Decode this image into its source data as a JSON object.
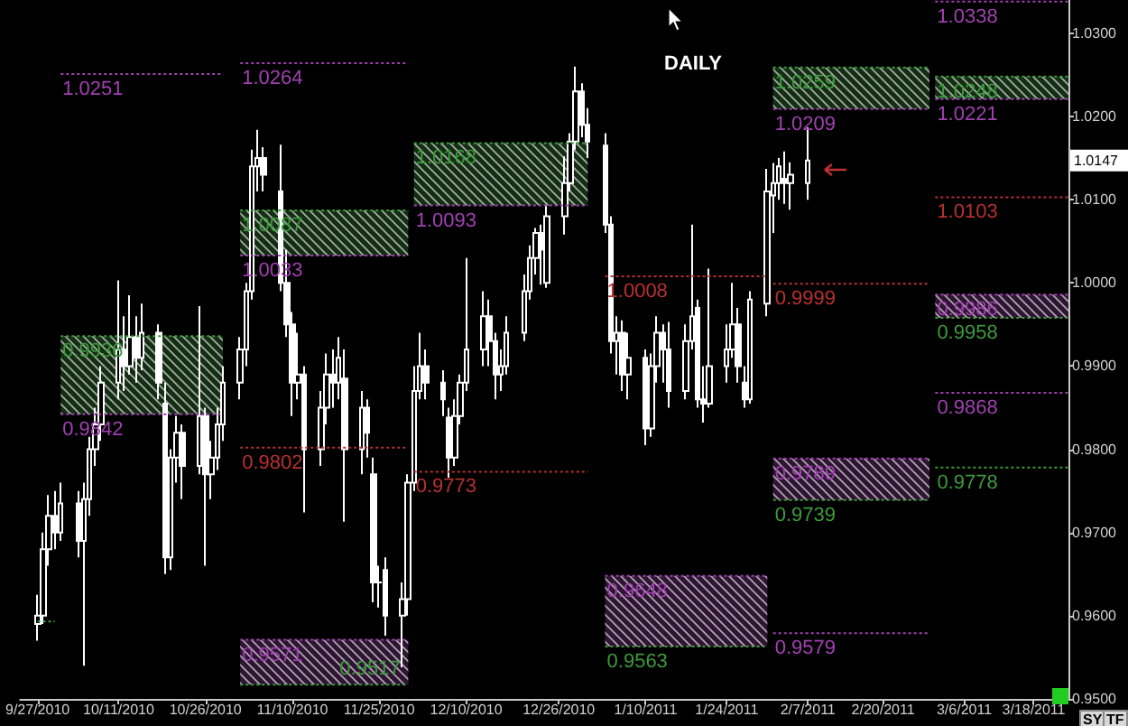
{
  "chart_data": {
    "type": "candlestick",
    "title": "DAILY",
    "color": "#ffffff",
    "marker": "none",
    "xlim": [
      "2010-09-24",
      "2011-03-24"
    ],
    "xticks": [
      {
        "value": "2010-09-27",
        "label": "9/27/2010"
      },
      {
        "value": "2010-10-11",
        "label": "10/11/2010"
      },
      {
        "value": "2010-10-26",
        "label": "10/26/2010"
      },
      {
        "value": "2010-11-10",
        "label": "11/10/2010"
      },
      {
        "value": "2010-11-25",
        "label": "11/25/2010"
      },
      {
        "value": "2010-12-10",
        "label": "12/10/2010"
      },
      {
        "value": "2010-12-26",
        "label": "12/26/2010"
      },
      {
        "value": "2011-01-10",
        "label": "1/10/2011"
      },
      {
        "value": "2011-01-24",
        "label": "1/24/2011"
      },
      {
        "value": "2011-02-07",
        "label": "2/7/2011"
      },
      {
        "value": "2011-02-20",
        "label": "2/20/2011"
      },
      {
        "value": "2011-03-06",
        "label": "3/6/2011"
      },
      {
        "value": "2011-03-18",
        "label": "3/18/2011"
      }
    ],
    "ylim": [
      0.95,
      1.034
    ],
    "yticks": [
      {
        "value": 0.95,
        "label": "0.9500"
      },
      {
        "value": 0.96,
        "label": "0.9600"
      },
      {
        "value": 0.97,
        "label": "0.9700"
      },
      {
        "value": 0.98,
        "label": "0.9800"
      },
      {
        "value": 0.99,
        "label": "0.9900"
      },
      {
        "value": 1.0,
        "label": "1.0000"
      },
      {
        "value": 1.01,
        "label": "1.0100"
      },
      {
        "value": 1.02,
        "label": "1.0200"
      },
      {
        "value": 1.03,
        "label": "1.0300"
      }
    ],
    "x": [
      "2010-09-27",
      "2010-09-28",
      "2010-09-29",
      "2010-09-30",
      "2010-10-01",
      "2010-10-04",
      "2010-10-05",
      "2010-10-06",
      "2010-10-07",
      "2010-10-08",
      "2010-10-11",
      "2010-10-12",
      "2010-10-13",
      "2010-10-14",
      "2010-10-15",
      "2010-10-18",
      "2010-10-19",
      "2010-10-20",
      "2010-10-21",
      "2010-10-22",
      "2010-10-25",
      "2010-10-26",
      "2010-10-27",
      "2010-10-28",
      "2010-10-29",
      "2010-11-01",
      "2010-11-02",
      "2010-11-03",
      "2010-11-04",
      "2010-11-05",
      "2010-11-08",
      "2010-11-09",
      "2010-11-10",
      "2010-11-11",
      "2010-11-12",
      "2010-11-15",
      "2010-11-16",
      "2010-11-17",
      "2010-11-18",
      "2010-11-19",
      "2010-11-22",
      "2010-11-23",
      "2010-11-24",
      "2010-11-25",
      "2010-11-26",
      "2010-11-29",
      "2010-11-30",
      "2010-12-01",
      "2010-12-02",
      "2010-12-03",
      "2010-12-06",
      "2010-12-07",
      "2010-12-08",
      "2010-12-09",
      "2010-12-10",
      "2010-12-13",
      "2010-12-14",
      "2010-12-15",
      "2010-12-16",
      "2010-12-17",
      "2010-12-20",
      "2010-12-21",
      "2010-12-22",
      "2010-12-23",
      "2010-12-24",
      "2010-12-27",
      "2010-12-28",
      "2010-12-29",
      "2010-12-30",
      "2010-12-31",
      "2011-01-03",
      "2011-01-04",
      "2011-01-05",
      "2011-01-06",
      "2011-01-07",
      "2011-01-10",
      "2011-01-11",
      "2011-01-12",
      "2011-01-13",
      "2011-01-14",
      "2011-01-17",
      "2011-01-18",
      "2011-01-19",
      "2011-01-20",
      "2011-01-21",
      "2011-01-24",
      "2011-01-25",
      "2011-01-26",
      "2011-01-27",
      "2011-01-28",
      "2011-01-31",
      "2011-02-01",
      "2011-02-02",
      "2011-02-03",
      "2011-02-04",
      "2011-02-07"
    ],
    "ohlc": [
      [
        0.959,
        0.9625,
        0.957,
        0.96
      ],
      [
        0.96,
        0.97,
        0.959,
        0.968
      ],
      [
        0.968,
        0.9745,
        0.966,
        0.972
      ],
      [
        0.972,
        0.975,
        0.968,
        0.97
      ],
      [
        0.97,
        0.976,
        0.969,
        0.9735
      ],
      [
        0.9735,
        0.975,
        0.967,
        0.969
      ],
      [
        0.969,
        0.976,
        0.954,
        0.974
      ],
      [
        0.974,
        0.9815,
        0.972,
        0.98
      ],
      [
        0.98,
        0.985,
        0.978,
        0.983
      ],
      [
        0.983,
        0.99,
        0.981,
        0.988
      ],
      [
        0.988,
        1.0003,
        0.986,
        0.992
      ],
      [
        0.992,
        0.996,
        0.987,
        0.99
      ],
      [
        0.99,
        0.9985,
        0.989,
        0.9935
      ],
      [
        0.9935,
        0.996,
        0.988,
        0.991
      ],
      [
        0.991,
        0.9975,
        0.9895,
        0.994
      ],
      [
        0.994,
        0.995,
        0.986,
        0.988
      ],
      [
        0.9855,
        0.988,
        0.965,
        0.967
      ],
      [
        0.967,
        0.98,
        0.9655,
        0.979
      ],
      [
        0.979,
        0.984,
        0.976,
        0.982
      ],
      [
        0.982,
        0.983,
        0.974,
        0.978
      ],
      [
        0.978,
        0.9972,
        0.977,
        0.984
      ],
      [
        0.984,
        0.985,
        0.966,
        0.977
      ],
      [
        0.977,
        0.981,
        0.974,
        0.979
      ],
      [
        0.979,
        0.985,
        0.9775,
        0.983
      ],
      [
        0.983,
        0.99,
        0.981,
        0.988
      ],
      [
        0.988,
        0.9935,
        0.986,
        0.992
      ],
      [
        0.992,
        1.0,
        0.99,
        0.999
      ],
      [
        0.999,
        1.016,
        0.998,
        1.014
      ],
      [
        1.014,
        1.0184,
        1.011,
        1.015
      ],
      [
        1.015,
        1.0163,
        1.011,
        1.013
      ],
      [
        1.011,
        1.0166,
        0.999,
        1.0
      ],
      [
        1.0,
        1.004,
        0.9935,
        0.995
      ],
      [
        0.995,
        0.9965,
        0.984,
        0.988
      ],
      [
        0.988,
        0.994,
        0.986,
        0.989
      ],
      [
        0.989,
        0.99,
        0.9724,
        0.98
      ],
      [
        0.98,
        0.987,
        0.978,
        0.985
      ],
      [
        0.985,
        0.9915,
        0.983,
        0.989
      ],
      [
        0.989,
        0.992,
        0.985,
        0.988
      ],
      [
        0.988,
        0.9935,
        0.986,
        0.991
      ],
      [
        0.9885,
        0.992,
        0.9713,
        0.98
      ],
      [
        0.98,
        0.987,
        0.977,
        0.985
      ],
      [
        0.985,
        0.986,
        0.979,
        0.982
      ],
      [
        0.977,
        0.979,
        0.9616,
        0.964
      ],
      [
        0.964,
        0.966,
        0.961,
        0.964
      ],
      [
        0.9655,
        0.967,
        0.9576,
        0.96
      ],
      [
        0.96,
        0.964,
        0.9538,
        0.962
      ],
      [
        0.962,
        0.977,
        0.96,
        0.976
      ],
      [
        0.976,
        0.99,
        0.975,
        0.987
      ],
      [
        0.987,
        0.994,
        0.986,
        0.99
      ],
      [
        0.99,
        0.992,
        0.986,
        0.988
      ],
      [
        0.988,
        0.9895,
        0.984,
        0.986
      ],
      [
        0.9838,
        0.985,
        0.9766,
        0.979
      ],
      [
        0.979,
        0.986,
        0.978,
        0.984
      ],
      [
        0.984,
        0.989,
        0.983,
        0.988
      ],
      [
        0.988,
        1.003,
        0.987,
        0.992
      ],
      [
        0.992,
        0.999,
        0.99,
        0.996
      ],
      [
        0.996,
        0.998,
        0.99,
        0.993
      ],
      [
        0.993,
        0.994,
        0.986,
        0.989
      ],
      [
        0.989,
        0.992,
        0.987,
        0.99
      ],
      [
        0.99,
        0.996,
        0.989,
        0.994
      ],
      [
        0.994,
        1.001,
        0.993,
        0.999
      ],
      [
        0.999,
        1.0045,
        0.998,
        1.003
      ],
      [
        1.003,
        1.0066,
        1.001,
        1.006
      ],
      [
        1.006,
        1.007,
        0.9998,
        1.004
      ],
      [
        1.0,
        1.0094,
        0.9994,
        1.008
      ],
      [
        1.008,
        1.0152,
        1.0058,
        1.012
      ],
      [
        1.012,
        1.018,
        1.011,
        1.017
      ],
      [
        1.017,
        1.026,
        1.016,
        1.023
      ],
      [
        1.023,
        1.024,
        1.0175,
        1.019
      ],
      [
        1.019,
        1.021,
        1.015,
        1.017
      ],
      [
        1.0165,
        1.018,
        1.006,
        1.007
      ],
      [
        1.007,
        1.008,
        0.9915,
        0.993
      ],
      [
        0.993,
        0.996,
        0.989,
        0.994
      ],
      [
        0.994,
        0.9955,
        0.987,
        0.989
      ],
      [
        0.989,
        0.994,
        0.986,
        0.991
      ],
      [
        0.991,
        0.992,
        0.9805,
        0.9825
      ],
      [
        0.9825,
        0.9915,
        0.9815,
        0.99
      ],
      [
        0.99,
        0.996,
        0.988,
        0.994
      ],
      [
        0.994,
        0.995,
        0.988,
        0.992
      ],
      [
        0.992,
        0.9953,
        0.985,
        0.987
      ],
      [
        0.987,
        0.995,
        0.986,
        0.993
      ],
      [
        0.993,
        1.007,
        0.992,
        0.996
      ],
      [
        0.997,
        0.998,
        0.985,
        0.986
      ],
      [
        0.986,
        0.99,
        0.9832,
        0.9855
      ],
      [
        0.9855,
        1.0017,
        0.985,
        0.99
      ],
      [
        0.99,
        0.995,
        0.988,
        0.992
      ],
      [
        0.992,
        1.0,
        0.991,
        0.995
      ],
      [
        0.995,
        0.997,
        0.988,
        0.99
      ],
      [
        0.988,
        0.99,
        0.985,
        0.986
      ],
      [
        0.986,
        0.999,
        0.9855,
        0.998
      ],
      [
        0.9975,
        1.0137,
        0.996,
        1.011
      ],
      [
        1.0105,
        1.0144,
        1.006,
        1.012
      ],
      [
        1.012,
        1.015,
        1.01,
        1.014
      ],
      [
        1.0125,
        1.0158,
        1.0095,
        1.012
      ],
      [
        1.012,
        1.0145,
        1.0088,
        1.013
      ],
      [
        1.012,
        1.0187,
        1.01,
        1.0147
      ]
    ],
    "series": [
      {
        "type": "line",
        "color": "#3c9a3c",
        "line_style": "dotted",
        "x": [
          "2010-09-27",
          "2010-09-30"
        ],
        "values": [
          0.9593,
          0.9593
        ]
      },
      {
        "type": "line",
        "name": "1.0251",
        "color": "#a040b0",
        "line_style": "dotted",
        "x": [
          "2010-10-01",
          "2010-10-29"
        ],
        "values": [
          1.0251,
          1.0251
        ]
      },
      {
        "type": "line",
        "name": "0.9936",
        "color": "#3c9a3c",
        "line_style": "dotted",
        "x": [
          "2010-10-01",
          "2010-10-29"
        ],
        "values": [
          0.9936,
          0.9936
        ],
        "lower": [
          0.9842,
          0.9842
        ],
        "upper": [
          0.9936,
          0.9936
        ]
      },
      {
        "type": "line",
        "name": "0.9842",
        "color": "#a040b0",
        "line_style": "dotted",
        "x": [
          "2010-10-01",
          "2010-10-29"
        ],
        "values": [
          0.9842,
          0.9842
        ]
      },
      {
        "type": "line",
        "name": "1.0264",
        "color": "#a040b0",
        "line_style": "dotted",
        "x": [
          "2010-11-01",
          "2010-11-30"
        ],
        "values": [
          1.0264,
          1.0264
        ]
      },
      {
        "type": "line",
        "name": "1.0087",
        "color": "#3c9a3c",
        "line_style": "dotted",
        "x": [
          "2010-11-01",
          "2010-11-30"
        ],
        "values": [
          1.0087,
          1.0087
        ],
        "lower": [
          1.0033,
          1.0033
        ],
        "upper": [
          1.0087,
          1.0087
        ]
      },
      {
        "type": "line",
        "name": "1.0033",
        "color": "#a040b0",
        "line_style": "dotted",
        "x": [
          "2010-11-01",
          "2010-11-30"
        ],
        "values": [
          1.0033,
          1.0033
        ]
      },
      {
        "type": "line",
        "name": "0.9802",
        "color": "#b83030",
        "line_style": "dotted",
        "x": [
          "2010-11-01",
          "2010-11-30"
        ],
        "values": [
          0.9802,
          0.9802
        ]
      },
      {
        "type": "line",
        "name": "0.9571",
        "color": "#a040b0",
        "line_style": "dotted",
        "x": [
          "2010-11-01",
          "2010-11-30"
        ],
        "values": [
          0.9571,
          0.9571
        ],
        "lower": [
          0.9517,
          0.9517
        ],
        "upper": [
          0.9571,
          0.9571
        ]
      },
      {
        "type": "line",
        "name": "0.9517",
        "color": "#3c9a3c",
        "line_style": "dotted",
        "x": [
          "2010-11-01",
          "2010-11-30"
        ],
        "values": [
          0.9517,
          0.9517
        ]
      },
      {
        "type": "line",
        "name": "1.0168",
        "color": "#3c9a3c",
        "line_style": "dotted",
        "x": [
          "2010-12-01",
          "2010-12-31"
        ],
        "values": [
          1.0168,
          1.0168
        ],
        "lower": [
          1.0093,
          1.0093
        ],
        "upper": [
          1.0168,
          1.0168
        ]
      },
      {
        "type": "line",
        "name": "1.0093",
        "color": "#a040b0",
        "line_style": "dotted",
        "x": [
          "2010-12-01",
          "2010-12-31"
        ],
        "values": [
          1.0093,
          1.0093
        ]
      },
      {
        "type": "line",
        "name": "0.9773",
        "color": "#b83030",
        "line_style": "dotted",
        "x": [
          "2010-12-01",
          "2010-12-31"
        ],
        "values": [
          0.9773,
          0.9773
        ]
      },
      {
        "type": "line",
        "name": "1.0008",
        "color": "#b83030",
        "line_style": "dotted",
        "x": [
          "2011-01-03",
          "2011-01-31"
        ],
        "values": [
          1.0008,
          1.0008
        ]
      },
      {
        "type": "line",
        "name": "0.9648",
        "color": "#a040b0",
        "line_style": "dotted",
        "x": [
          "2011-01-03",
          "2011-01-31"
        ],
        "values": [
          0.9648,
          0.9648
        ],
        "lower": [
          0.9563,
          0.9563
        ],
        "upper": [
          0.9648,
          0.9648
        ]
      },
      {
        "type": "line",
        "name": "0.9563",
        "color": "#3c9a3c",
        "line_style": "dotted",
        "x": [
          "2011-01-03",
          "2011-01-31"
        ],
        "values": [
          0.9563,
          0.9563
        ]
      },
      {
        "type": "line",
        "name": "1.0259",
        "color": "#3c9a3c",
        "line_style": "dotted",
        "x": [
          "2011-02-01",
          "2011-02-28"
        ],
        "values": [
          1.0259,
          1.0259
        ],
        "lower": [
          1.0209,
          1.0209
        ],
        "upper": [
          1.0259,
          1.0259
        ]
      },
      {
        "type": "line",
        "name": "1.0209",
        "color": "#a040b0",
        "line_style": "dotted",
        "x": [
          "2011-02-01",
          "2011-02-28"
        ],
        "values": [
          1.0209,
          1.0209
        ]
      },
      {
        "type": "line",
        "name": "0.9999",
        "color": "#b83030",
        "line_style": "dotted",
        "x": [
          "2011-02-01",
          "2011-02-28"
        ],
        "values": [
          0.9999,
          0.9999
        ]
      },
      {
        "type": "line",
        "name": "0.9789",
        "color": "#a040b0",
        "line_style": "dotted",
        "x": [
          "2011-02-01",
          "2011-02-28"
        ],
        "values": [
          0.9789,
          0.9789
        ],
        "lower": [
          0.9739,
          0.9739
        ],
        "upper": [
          0.9789,
          0.9789
        ]
      },
      {
        "type": "line",
        "name": "0.9739",
        "color": "#3c9a3c",
        "line_style": "dotted",
        "x": [
          "2011-02-01",
          "2011-02-28"
        ],
        "values": [
          0.9739,
          0.9739
        ]
      },
      {
        "type": "line",
        "name": "0.9579",
        "color": "#a040b0",
        "line_style": "dotted",
        "x": [
          "2011-02-01",
          "2011-02-28"
        ],
        "values": [
          0.9579,
          0.9579
        ]
      },
      {
        "type": "line",
        "name": "1.0338",
        "color": "#a040b0",
        "line_style": "dotted",
        "x": [
          "2011-03-01",
          "2011-03-24"
        ],
        "values": [
          1.0338,
          1.0338
        ]
      },
      {
        "type": "line",
        "name": "1.0248",
        "color": "#3c9a3c",
        "line_style": "dotted",
        "x": [
          "2011-03-01",
          "2011-03-24"
        ],
        "values": [
          1.0248,
          1.0248
        ],
        "lower": [
          1.0221,
          1.0221
        ],
        "upper": [
          1.0248,
          1.0248
        ]
      },
      {
        "type": "line",
        "name": "1.0221",
        "color": "#a040b0",
        "line_style": "dotted",
        "x": [
          "2011-03-01",
          "2011-03-24"
        ],
        "values": [
          1.0221,
          1.0221
        ]
      },
      {
        "type": "line",
        "name": "1.0103",
        "color": "#b83030",
        "line_style": "dotted",
        "x": [
          "2011-03-01",
          "2011-03-24"
        ],
        "values": [
          1.0103,
          1.0103
        ]
      },
      {
        "type": "line",
        "name": "0.9986",
        "color": "#a040b0",
        "line_style": "dotted",
        "x": [
          "2011-03-01",
          "2011-03-24"
        ],
        "values": [
          0.9986,
          0.9986
        ],
        "lower": [
          0.9958,
          0.9958
        ],
        "upper": [
          0.9986,
          0.9986
        ]
      },
      {
        "type": "line",
        "name": "0.9958",
        "color": "#3c9a3c",
        "line_style": "dotted",
        "x": [
          "2011-03-01",
          "2011-03-24"
        ],
        "values": [
          0.9958,
          0.9958
        ]
      },
      {
        "type": "line",
        "name": "0.9868",
        "color": "#a040b0",
        "line_style": "dotted",
        "x": [
          "2011-03-01",
          "2011-03-24"
        ],
        "values": [
          0.9868,
          0.9868
        ]
      },
      {
        "type": "line",
        "name": "0.9778",
        "color": "#3c9a3c",
        "line_style": "dotted",
        "x": [
          "2011-03-01",
          "2011-03-24"
        ],
        "values": [
          0.9778,
          0.9778
        ]
      }
    ],
    "annotations": [
      {
        "text": "1.0147",
        "y": 1.0147
      },
      "SY",
      "TF"
    ]
  }
}
